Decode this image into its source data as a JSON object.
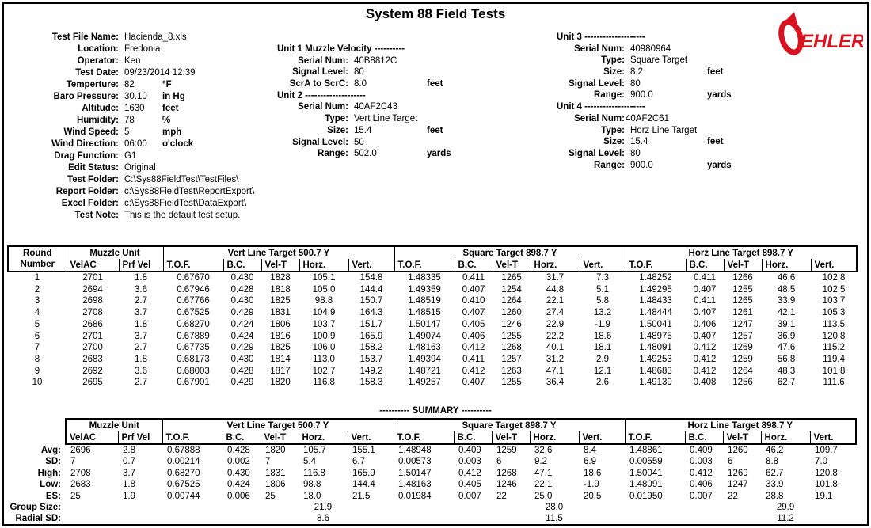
{
  "title": "System 88 Field Tests",
  "logo": {
    "text": "EHLER",
    "color": "#d8121e"
  },
  "info_left": {
    "rows": [
      {
        "label": "Test File Name:",
        "value": "Hacienda_8.xls"
      },
      {
        "label": "Location:",
        "value": "Fredonia"
      },
      {
        "label": "Operator:",
        "value": "Ken"
      },
      {
        "label": "Test Date:",
        "value": "09/23/2014 12:39"
      },
      {
        "label": "Temperture:",
        "value": "82",
        "unit": "°F"
      },
      {
        "label": "Baro Pressure:",
        "value": "30.10",
        "unit": "in Hg"
      },
      {
        "label": "Altitude:",
        "value": "1630",
        "unit": "feet"
      },
      {
        "label": "Humidity:",
        "value": "78",
        "unit": "%"
      },
      {
        "label": "Wind Speed:",
        "value": "5",
        "unit": "mph"
      },
      {
        "label": "Wind Direction:",
        "value": "06:00",
        "unit": "o'clock"
      },
      {
        "label": "Drag Function:",
        "value": "G1"
      },
      {
        "label": "Edit Status:",
        "value": "Original"
      },
      {
        "label": "Test Folder:",
        "value": "C:\\Sys88FieldTest\\TestFiles\\"
      },
      {
        "label": "Report Folder:",
        "value": "c:\\Sys88FieldTest\\ReportExport\\"
      },
      {
        "label": "Excel Folder:",
        "value": "c:\\Sys88FieldTest\\DataExport\\"
      },
      {
        "label": "Test Note:",
        "value": "This is the default test setup."
      }
    ]
  },
  "unit_middle": {
    "rows": [
      {
        "heading": "Unit 1 Muzzle Velocity ----------"
      },
      {
        "label": "Serial Num:",
        "value": "40B8812C"
      },
      {
        "label": "Signal Level:",
        "value": "80"
      },
      {
        "label": "ScrA to ScrC:",
        "value": "8.0",
        "unit": "feet"
      },
      {
        "heading": "Unit 2 --------------------"
      },
      {
        "label": "Serial Num:",
        "value": "40AF2C43"
      },
      {
        "label": "Type:",
        "value": "Vert Line Target"
      },
      {
        "label": "Size:",
        "value": "15.4",
        "unit": "feet"
      },
      {
        "label": "Signal Level:",
        "value": "50"
      },
      {
        "label": "Range:",
        "value": "502.0",
        "unit": "yards"
      }
    ]
  },
  "unit_right": {
    "rows": [
      {
        "heading": "Unit 3 --------------------"
      },
      {
        "label": "Serial Num:",
        "value": "40980964"
      },
      {
        "label": "Type:",
        "value": "Square Target"
      },
      {
        "label": "Size:",
        "value": "8.2",
        "unit": "feet"
      },
      {
        "label": "Signal Level:",
        "value": "80"
      },
      {
        "label": "Range:",
        "value": "900.0",
        "unit": "yards"
      },
      {
        "heading": "Unit 4 --------------------"
      },
      {
        "label": "Serial Num:",
        "value": "40AF2C61",
        "tight": true
      },
      {
        "label": "Type:",
        "value": "Horz Line Target"
      },
      {
        "label": "Size:",
        "value": "15.4",
        "unit": "feet"
      },
      {
        "label": "Signal Level:",
        "value": "80"
      },
      {
        "label": "Range:",
        "value": "900.0",
        "unit": "yards"
      }
    ]
  },
  "main_table": {
    "round_header": [
      "Round",
      "Number"
    ],
    "muzzle_header": "Muzzle Unit",
    "muzzle_cols": [
      "VelAC",
      "Prf Vel"
    ],
    "target_groups": [
      {
        "title": "Vert Line Target 500.7 Y"
      },
      {
        "title": "Square Target 898.7 Y"
      },
      {
        "title": "Horz Line Target 898.7 Y"
      }
    ],
    "target_cols": [
      "T.O.F.",
      "B.C.",
      "Vel-T",
      "Horz.",
      "Vert."
    ],
    "rows": [
      [
        "1",
        "2701",
        "1.8",
        "0.67670",
        "0.430",
        "1828",
        "105.1",
        "154.8",
        "1.48335",
        "0.411",
        "1265",
        "31.7",
        "7.3",
        "1.48252",
        "0.411",
        "1266",
        "46.6",
        "102.8"
      ],
      [
        "2",
        "2694",
        "3.6",
        "0.67946",
        "0.428",
        "1818",
        "105.0",
        "144.4",
        "1.49359",
        "0.407",
        "1254",
        "44.8",
        "5.1",
        "1.49295",
        "0.407",
        "1255",
        "48.5",
        "102.5"
      ],
      [
        "3",
        "2698",
        "2.7",
        "0.67766",
        "0.430",
        "1825",
        "98.8",
        "150.7",
        "1.48519",
        "0.410",
        "1264",
        "22.1",
        "5.8",
        "1.48433",
        "0.411",
        "1265",
        "33.9",
        "103.7"
      ],
      [
        "4",
        "2708",
        "3.7",
        "0.67525",
        "0.429",
        "1831",
        "104.9",
        "164.3",
        "1.48515",
        "0.407",
        "1260",
        "27.4",
        "13.2",
        "1.48444",
        "0.407",
        "1261",
        "42.1",
        "105.3"
      ],
      [
        "5",
        "2686",
        "1.8",
        "0.68270",
        "0.424",
        "1806",
        "103.7",
        "151.7",
        "1.50147",
        "0.405",
        "1246",
        "22.9",
        "-1.9",
        "1.50041",
        "0.406",
        "1247",
        "39.1",
        "113.5"
      ],
      [
        "6",
        "2701",
        "3.7",
        "0.67889",
        "0.424",
        "1816",
        "100.9",
        "165.9",
        "1.49074",
        "0.406",
        "1255",
        "22.2",
        "18.6",
        "1.48975",
        "0.407",
        "1257",
        "36.9",
        "120.8"
      ],
      [
        "7",
        "2700",
        "2.7",
        "0.67735",
        "0.429",
        "1825",
        "106.0",
        "158.2",
        "1.48163",
        "0.412",
        "1268",
        "40.1",
        "18.1",
        "1.48091",
        "0.412",
        "1269",
        "47.6",
        "115.2"
      ],
      [
        "8",
        "2683",
        "1.8",
        "0.68173",
        "0.430",
        "1814",
        "113.0",
        "153.7",
        "1.49394",
        "0.411",
        "1257",
        "31.2",
        "2.9",
        "1.49253",
        "0.412",
        "1259",
        "56.8",
        "119.4"
      ],
      [
        "9",
        "2692",
        "3.6",
        "0.68003",
        "0.428",
        "1817",
        "102.7",
        "149.2",
        "1.48721",
        "0.412",
        "1263",
        "47.1",
        "12.1",
        "1.48683",
        "0.412",
        "1264",
        "48.3",
        "101.8"
      ],
      [
        "10",
        "2695",
        "2.7",
        "0.67901",
        "0.429",
        "1820",
        "116.8",
        "158.3",
        "1.49257",
        "0.407",
        "1255",
        "36.4",
        "2.6",
        "1.49139",
        "0.408",
        "1256",
        "62.7",
        "111.6"
      ]
    ]
  },
  "summary": {
    "title": "---------- SUMMARY ----------",
    "rows": [
      {
        "label": "Avg:",
        "values": [
          "2696",
          "2.8",
          "0.67888",
          "0.428",
          "1820",
          "105.7",
          "155.1",
          "1.48948",
          "0.409",
          "1259",
          "32.6",
          "8.4",
          "1.48861",
          "0.409",
          "1260",
          "46.2",
          "109.7"
        ]
      },
      {
        "label": "SD:",
        "values": [
          "7",
          "0.7",
          "0.00214",
          "0.002",
          "7",
          "5.4",
          "6.7",
          "0.00573",
          "0.003",
          "6",
          "9.2",
          "6.9",
          "0.00559",
          "0.003",
          "6",
          "8.8",
          "7.0"
        ]
      },
      {
        "label": "High:",
        "values": [
          "2708",
          "3.7",
          "0.68270",
          "0.430",
          "1831",
          "116.8",
          "165.9",
          "1.50147",
          "0.412",
          "1268",
          "47.1",
          "18.6",
          "1.50041",
          "0.412",
          "1269",
          "62.7",
          "120.8"
        ]
      },
      {
        "label": "Low:",
        "values": [
          "2683",
          "1.8",
          "0.67525",
          "0.424",
          "1806",
          "98.8",
          "144.4",
          "1.48163",
          "0.405",
          "1246",
          "22.1",
          "-1.9",
          "1.48091",
          "0.406",
          "1247",
          "33.9",
          "101.8"
        ]
      },
      {
        "label": "ES:",
        "values": [
          "25",
          "1.9",
          "0.00744",
          "0.006",
          "25",
          "18.0",
          "21.5",
          "0.01984",
          "0.007",
          "22",
          "25.0",
          "20.5",
          "0.01950",
          "0.007",
          "22",
          "28.8",
          "19.1"
        ]
      }
    ],
    "group_size": {
      "label": "Group Size:",
      "values": [
        "21.9",
        "28.0",
        "29.9"
      ]
    },
    "radial_sd": {
      "label": "Radial SD:",
      "values": [
        "8.6",
        "11.5",
        "11.2"
      ]
    }
  }
}
